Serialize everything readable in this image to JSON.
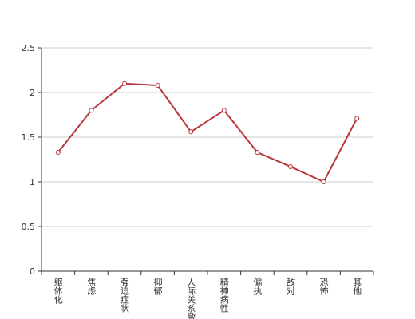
{
  "chart_data": {
    "type": "line",
    "categories": [
      "躯体化",
      "焦虑",
      "强迫症状",
      "抑郁",
      "人际关系敏感",
      "精神病性",
      "偏执",
      "敌对",
      "恐怖",
      "其他"
    ],
    "values": [
      1.33,
      1.8,
      2.1,
      2.08,
      1.56,
      1.8,
      1.33,
      1.17,
      1.0,
      1.71
    ],
    "color": "#b8363a",
    "ylim": [
      0,
      2.5
    ],
    "yticks": [
      0,
      0.5,
      1,
      1.5,
      2,
      2.5
    ],
    "grid": true
  }
}
